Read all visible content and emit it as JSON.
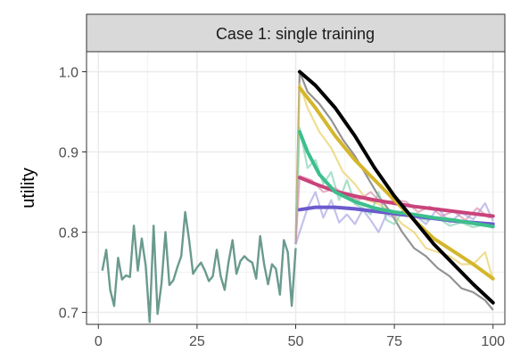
{
  "chart_data": {
    "type": "line",
    "facet_title": "Case 1: single training",
    "xlabel": "",
    "ylabel": "utility",
    "xlim": [
      -3,
      103
    ],
    "ylim": [
      0.685,
      1.025
    ],
    "x_ticks": [
      0,
      25,
      50,
      75,
      100
    ],
    "x_tick_labels": [
      "0",
      "25",
      "50",
      "75",
      "100"
    ],
    "y_ticks": [
      0.7,
      0.8,
      0.9,
      1.0
    ],
    "y_tick_labels": [
      "0.7",
      "0.8",
      "0.9",
      "1.0"
    ],
    "grid": true,
    "legend": "none",
    "baseline": {
      "color": "#6a9a8e",
      "x": [
        1,
        2,
        3,
        4,
        5,
        6,
        7,
        8,
        9,
        10,
        11,
        12,
        13,
        14,
        15,
        16,
        17,
        18,
        19,
        20,
        21,
        22,
        23,
        24,
        25,
        26,
        27,
        28,
        29,
        30,
        31,
        32,
        33,
        34,
        35,
        36,
        37,
        38,
        39,
        40,
        41,
        42,
        43,
        44,
        45,
        46,
        47,
        48,
        49,
        50
      ],
      "values": [
        0.752,
        0.778,
        0.728,
        0.708,
        0.768,
        0.741,
        0.746,
        0.744,
        0.808,
        0.752,
        0.792,
        0.758,
        0.688,
        0.808,
        0.698,
        0.736,
        0.8,
        0.734,
        0.74,
        0.756,
        0.77,
        0.825,
        0.79,
        0.748,
        0.756,
        0.762,
        0.752,
        0.739,
        0.745,
        0.778,
        0.745,
        0.728,
        0.763,
        0.79,
        0.748,
        0.764,
        0.77,
        0.765,
        0.762,
        0.742,
        0.795,
        0.76,
        0.735,
        0.76,
        0.754,
        0.722,
        0.79,
        0.775,
        0.708,
        0.78
      ]
    },
    "raw_series": [
      {
        "color": "#7f7f7f",
        "opacity": 0.85,
        "x": [
          50,
          51,
          53,
          56,
          59,
          62,
          65,
          68,
          71,
          74,
          77,
          80,
          83,
          86,
          89,
          92,
          95,
          98,
          100
        ],
        "values": [
          0.785,
          1.0,
          0.975,
          0.96,
          0.94,
          0.915,
          0.895,
          0.87,
          0.845,
          0.825,
          0.8,
          0.78,
          0.77,
          0.755,
          0.745,
          0.73,
          0.725,
          0.715,
          0.703
        ]
      },
      {
        "color": "#e6cc55",
        "opacity": 0.65,
        "x": [
          50,
          51,
          53,
          56,
          59,
          62,
          65,
          68,
          71,
          74,
          77,
          80,
          83,
          86,
          89,
          92,
          95,
          98,
          100
        ],
        "values": [
          0.785,
          0.985,
          0.955,
          0.925,
          0.905,
          0.875,
          0.86,
          0.84,
          0.835,
          0.825,
          0.81,
          0.8,
          0.78,
          0.775,
          0.77,
          0.76,
          0.76,
          0.775,
          0.74
        ]
      },
      {
        "color": "#7fd0b0",
        "opacity": 0.65,
        "x": [
          50,
          51,
          53,
          55,
          57,
          59,
          61,
          63,
          65,
          67,
          69,
          71,
          73,
          75,
          77,
          80,
          83,
          86,
          89,
          92,
          95,
          98,
          100
        ],
        "values": [
          0.785,
          0.93,
          0.88,
          0.89,
          0.86,
          0.875,
          0.84,
          0.865,
          0.835,
          0.83,
          0.822,
          0.85,
          0.815,
          0.81,
          0.825,
          0.82,
          0.815,
          0.818,
          0.808,
          0.812,
          0.806,
          0.81,
          0.805
        ]
      },
      {
        "color": "#d98aa8",
        "opacity": 0.65,
        "x": [
          50,
          51,
          54,
          57,
          60,
          63,
          66,
          69,
          72,
          75,
          78,
          81,
          84,
          87,
          90,
          93,
          96,
          99,
          100
        ],
        "values": [
          0.785,
          0.87,
          0.865,
          0.85,
          0.855,
          0.845,
          0.84,
          0.85,
          0.835,
          0.84,
          0.838,
          0.825,
          0.832,
          0.82,
          0.826,
          0.815,
          0.83,
          0.818,
          0.822
        ]
      },
      {
        "color": "#a59fe0",
        "opacity": 0.65,
        "x": [
          50,
          51,
          53,
          55,
          57,
          59,
          61,
          63,
          65,
          67,
          69,
          71,
          73,
          75,
          77,
          80,
          83,
          86,
          89,
          92,
          95,
          98,
          100
        ],
        "values": [
          0.785,
          0.8,
          0.83,
          0.85,
          0.818,
          0.84,
          0.812,
          0.822,
          0.81,
          0.828,
          0.815,
          0.8,
          0.822,
          0.818,
          0.826,
          0.822,
          0.81,
          0.83,
          0.812,
          0.824,
          0.816,
          0.836,
          0.814
        ]
      }
    ],
    "fit_series": [
      {
        "color": "#000000",
        "x": [
          51,
          55,
          60,
          65,
          70,
          75,
          80,
          85,
          90,
          95,
          100
        ],
        "values": [
          1.0,
          0.983,
          0.955,
          0.92,
          0.88,
          0.845,
          0.815,
          0.785,
          0.76,
          0.735,
          0.712
        ]
      },
      {
        "color": "#d4b62b",
        "x": [
          51,
          55,
          60,
          65,
          70,
          75,
          80,
          85,
          90,
          95,
          100
        ],
        "values": [
          0.98,
          0.955,
          0.92,
          0.89,
          0.865,
          0.84,
          0.815,
          0.792,
          0.776,
          0.76,
          0.742
        ]
      },
      {
        "color": "#3cbf8c",
        "x": [
          51,
          53,
          56,
          60,
          65,
          70,
          75,
          80,
          85,
          90,
          95,
          100
        ],
        "values": [
          0.925,
          0.9,
          0.872,
          0.85,
          0.838,
          0.83,
          0.825,
          0.822,
          0.818,
          0.815,
          0.811,
          0.807
        ]
      },
      {
        "color": "#c9437a",
        "x": [
          51,
          55,
          60,
          65,
          70,
          75,
          80,
          85,
          90,
          95,
          100
        ],
        "values": [
          0.868,
          0.86,
          0.851,
          0.845,
          0.84,
          0.836,
          0.832,
          0.829,
          0.826,
          0.823,
          0.82
        ]
      },
      {
        "color": "#6a5acd",
        "x": [
          51,
          55,
          60,
          65,
          70,
          75,
          80,
          85,
          90,
          95,
          100
        ],
        "values": [
          0.828,
          0.831,
          0.831,
          0.829,
          0.826,
          0.823,
          0.82,
          0.817,
          0.814,
          0.812,
          0.81
        ]
      }
    ]
  }
}
